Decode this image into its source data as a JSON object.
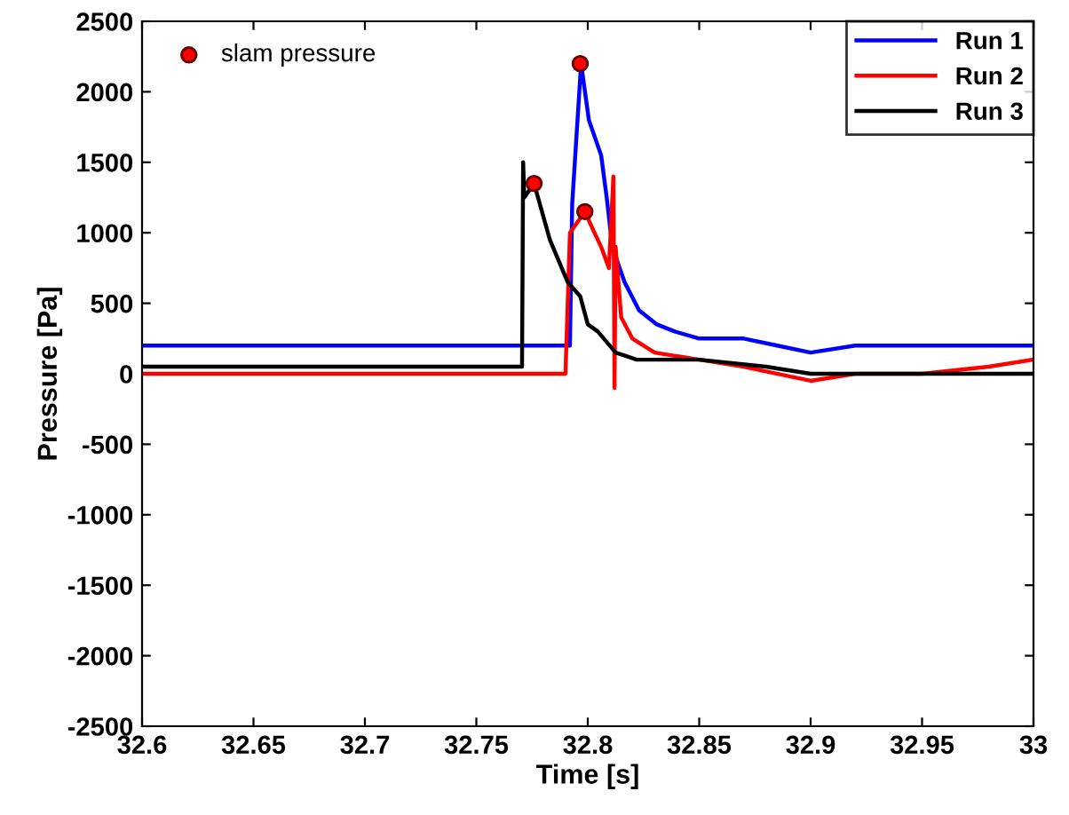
{
  "chart_data": {
    "type": "line",
    "xlabel": "Time [s]",
    "ylabel": "Pressure [Pa]",
    "xlim": [
      32.6,
      33
    ],
    "xticks": [
      32.6,
      32.65,
      32.7,
      32.75,
      32.8,
      32.85,
      32.9,
      32.95,
      33
    ],
    "ylim": [
      -2500,
      2500
    ],
    "yticks": [
      -2500,
      -2000,
      -1500,
      -1000,
      -500,
      0,
      500,
      1000,
      1500,
      2000,
      2500
    ],
    "legend": "top right",
    "grid": false,
    "series": [
      {
        "name": "Run 1",
        "color": "#0000ff",
        "x": [
          32.6,
          32.65,
          32.7,
          32.75,
          32.78,
          32.792,
          32.793,
          32.797,
          32.8005,
          32.806,
          32.8085,
          32.811,
          32.8165,
          32.823,
          32.831,
          32.839,
          32.85,
          32.87,
          32.885,
          32.9,
          32.92,
          32.95,
          32.98,
          33
        ],
        "values": [
          200,
          200,
          200,
          200,
          200,
          200,
          1200,
          2200,
          1800,
          1550,
          1250,
          900,
          650,
          450,
          350,
          300,
          250,
          250,
          200,
          150,
          200,
          200,
          200,
          200
        ]
      },
      {
        "name": "Run 2",
        "color": "#ff0000",
        "x": [
          32.6,
          32.65,
          32.7,
          32.75,
          32.77,
          32.79,
          32.792,
          32.7987,
          32.803,
          32.806,
          32.8095,
          32.8115,
          32.812,
          32.8125,
          32.815,
          32.82,
          32.83,
          32.85,
          32.87,
          32.9,
          32.92,
          32.95,
          32.98,
          33
        ],
        "values": [
          0,
          0,
          0,
          0,
          0,
          0,
          1000,
          1150,
          1000,
          900,
          750,
          1400,
          -100,
          900,
          400,
          250,
          150,
          100,
          50,
          -50,
          0,
          0,
          50,
          100
        ]
      },
      {
        "name": "Run 3",
        "color": "#000000",
        "x": [
          32.6,
          32.65,
          32.7,
          32.75,
          32.7705,
          32.771,
          32.7715,
          32.7759,
          32.783,
          32.791,
          32.7966,
          32.8,
          32.8045,
          32.8125,
          32.822,
          32.85,
          32.88,
          32.9,
          32.95,
          33
        ],
        "values": [
          50,
          50,
          50,
          50,
          50,
          1500,
          1250,
          1350,
          950,
          650,
          550,
          350,
          300,
          150,
          100,
          100,
          50,
          0,
          0,
          0
        ]
      },
      {
        "name": "slam pressure",
        "type": "scatter",
        "marker": "circle",
        "color": "#ff0000",
        "x": [
          32.7966,
          32.7759,
          32.7987
        ],
        "values": [
          2200,
          1350,
          1150
        ]
      }
    ]
  }
}
